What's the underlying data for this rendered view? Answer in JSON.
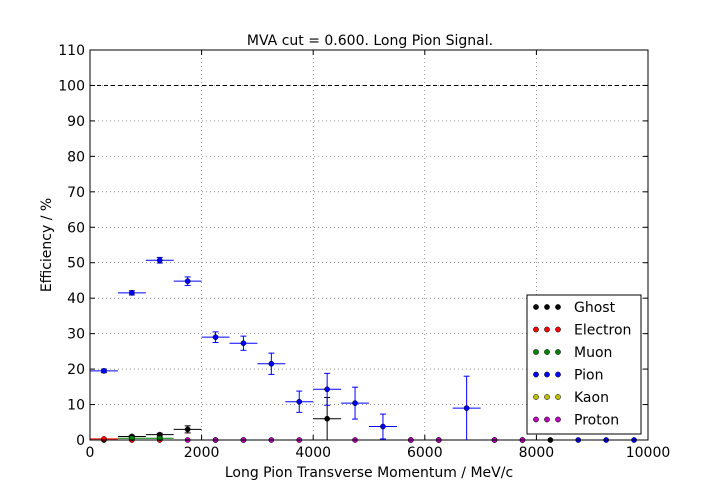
{
  "chart_data": {
    "type": "scatter",
    "title": "MVA cut = 0.600. Long Pion Signal.",
    "xlabel": "Long Pion Transverse Momentum / MeV/c",
    "ylabel": "Efficiency / %",
    "xlim": [
      0,
      10000
    ],
    "ylim": [
      0,
      110
    ],
    "xticks": [
      0,
      2000,
      4000,
      6000,
      8000,
      10000
    ],
    "yticks": [
      0,
      10,
      20,
      30,
      40,
      50,
      60,
      70,
      80,
      90,
      100,
      110
    ],
    "grid": true,
    "reference_line": {
      "y": 100,
      "style": "dashed"
    },
    "legend_position": "lower-right",
    "series": [
      {
        "name": "Ghost",
        "color": "#000000",
        "points": [
          {
            "x": 250,
            "y": 0,
            "xerr": 250,
            "yerr": 0
          },
          {
            "x": 750,
            "y": 1.0,
            "xerr": 250,
            "yerr": 0.3
          },
          {
            "x": 1250,
            "y": 1.5,
            "xerr": 250,
            "yerr": 0.4
          },
          {
            "x": 1750,
            "y": 3.0,
            "xerr": 250,
            "yerr": 1.0
          },
          {
            "x": 4250,
            "y": 6.0,
            "xerr": 250,
            "yerr": 6.0
          },
          {
            "x": 8250,
            "y": 0,
            "xerr": 250,
            "yerr": 0
          }
        ]
      },
      {
        "name": "Electron",
        "color": "#ff0000",
        "points": [
          {
            "x": 250,
            "y": 0.3,
            "xerr": 250,
            "yerr": 0.1
          },
          {
            "x": 750,
            "y": 0,
            "xerr": 250,
            "yerr": 0
          },
          {
            "x": 1250,
            "y": 0,
            "xerr": 250,
            "yerr": 0
          }
        ]
      },
      {
        "name": "Muon",
        "color": "#008000",
        "points": [
          {
            "x": 750,
            "y": 0.5,
            "xerr": 250,
            "yerr": 0.2
          },
          {
            "x": 1250,
            "y": 0.5,
            "xerr": 250,
            "yerr": 0.2
          }
        ]
      },
      {
        "name": "Pion",
        "color": "#0000ff",
        "points": [
          {
            "x": 250,
            "y": 19.5,
            "xerr": 250,
            "yerr": 0.5
          },
          {
            "x": 750,
            "y": 41.5,
            "xerr": 250,
            "yerr": 0.6
          },
          {
            "x": 1250,
            "y": 50.7,
            "xerr": 250,
            "yerr": 0.8
          },
          {
            "x": 1750,
            "y": 44.8,
            "xerr": 250,
            "yerr": 1.2
          },
          {
            "x": 2250,
            "y": 29.0,
            "xerr": 250,
            "yerr": 1.5
          },
          {
            "x": 2750,
            "y": 27.3,
            "xerr": 250,
            "yerr": 2.0
          },
          {
            "x": 3250,
            "y": 21.5,
            "xerr": 250,
            "yerr": 3.0
          },
          {
            "x": 3750,
            "y": 10.8,
            "xerr": 250,
            "yerr": 3.0
          },
          {
            "x": 4250,
            "y": 14.3,
            "xerr": 250,
            "yerr": 4.5
          },
          {
            "x": 4750,
            "y": 10.4,
            "xerr": 250,
            "yerr": 4.5
          },
          {
            "x": 5250,
            "y": 3.8,
            "xerr": 250,
            "yerr": 3.5
          },
          {
            "x": 5750,
            "y": 0,
            "xerr": 250,
            "yerr": 0
          },
          {
            "x": 6250,
            "y": 0,
            "xerr": 250,
            "yerr": 0
          },
          {
            "x": 6750,
            "y": 9.0,
            "xerr": 250,
            "yerr": 9.0
          },
          {
            "x": 7250,
            "y": 0,
            "xerr": 250,
            "yerr": 0
          },
          {
            "x": 7750,
            "y": 0,
            "xerr": 250,
            "yerr": 0
          },
          {
            "x": 8750,
            "y": 0,
            "xerr": 250,
            "yerr": 0
          },
          {
            "x": 9250,
            "y": 0,
            "xerr": 250,
            "yerr": 0
          },
          {
            "x": 9750,
            "y": 0,
            "xerr": 250,
            "yerr": 0
          }
        ]
      },
      {
        "name": "Kaon",
        "color": "#bfbf00",
        "points": [
          {
            "x": 2250,
            "y": 0,
            "xerr": 250,
            "yerr": 0
          },
          {
            "x": 2750,
            "y": 0,
            "xerr": 250,
            "yerr": 0
          }
        ]
      },
      {
        "name": "Proton",
        "color": "#bf00bf",
        "points": [
          {
            "x": 1750,
            "y": 0,
            "xerr": 250,
            "yerr": 0
          },
          {
            "x": 2250,
            "y": 0,
            "xerr": 250,
            "yerr": 0
          },
          {
            "x": 2750,
            "y": 0,
            "xerr": 250,
            "yerr": 0
          },
          {
            "x": 3250,
            "y": 0,
            "xerr": 250,
            "yerr": 0
          },
          {
            "x": 3750,
            "y": 0,
            "xerr": 250,
            "yerr": 0
          },
          {
            "x": 4750,
            "y": 0,
            "xerr": 250,
            "yerr": 0
          },
          {
            "x": 5750,
            "y": 0,
            "xerr": 250,
            "yerr": 0
          },
          {
            "x": 6250,
            "y": 0,
            "xerr": 250,
            "yerr": 0
          },
          {
            "x": 7250,
            "y": 0,
            "xerr": 250,
            "yerr": 0
          },
          {
            "x": 7750,
            "y": 0,
            "xerr": 250,
            "yerr": 0
          }
        ]
      }
    ]
  }
}
